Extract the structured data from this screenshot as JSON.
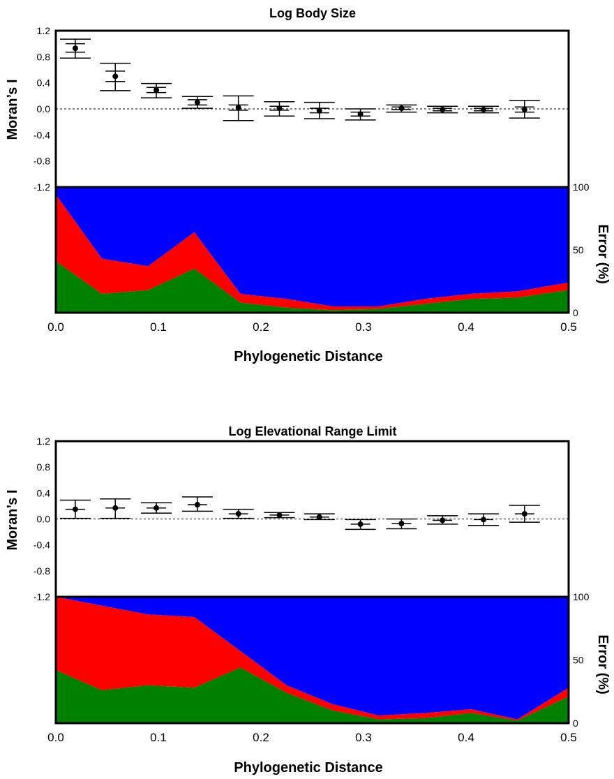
{
  "chart_data": [
    {
      "type": "scatter",
      "title": "Log Body Size",
      "xlabel": "Phylogenetic Distance",
      "ylabel": "Moran’s I",
      "y2label": "Error (%)",
      "xlim": [
        0,
        0.5
      ],
      "ylim": [
        -1.2,
        1.2
      ],
      "y2lim": [
        0,
        100
      ],
      "xticks": [
        "0.0",
        "0.1",
        "0.2",
        "0.3",
        "0.4",
        "0.5"
      ],
      "yticks": [
        "1.2",
        "0.8",
        "0.4",
        "0.0",
        "-0.4",
        "-0.8",
        "-1.2"
      ],
      "y2ticks": [
        "100",
        "50",
        "0"
      ],
      "moran": {
        "x": [
          0.019,
          0.058,
          0.098,
          0.138,
          0.178,
          0.218,
          0.257,
          0.297,
          0.337,
          0.377,
          0.417,
          0.457
        ],
        "mean": [
          0.93,
          0.5,
          0.29,
          0.1,
          0.02,
          0.01,
          -0.03,
          -0.08,
          0.01,
          -0.01,
          -0.01,
          -0.01
        ],
        "upper": [
          1.07,
          0.7,
          0.39,
          0.19,
          0.2,
          0.11,
          0.1,
          0.0,
          0.06,
          0.04,
          0.04,
          0.13
        ],
        "lower": [
          0.78,
          0.28,
          0.17,
          0.01,
          -0.18,
          -0.11,
          -0.15,
          -0.17,
          -0.05,
          -0.06,
          -0.06,
          -0.14
        ],
        "inner_upper": [
          1.0,
          0.58,
          0.33,
          0.14,
          0.06,
          0.04,
          0.01,
          -0.05,
          0.03,
          0.01,
          0.01,
          0.03
        ],
        "inner_lower": [
          0.87,
          0.42,
          0.25,
          0.06,
          -0.02,
          -0.02,
          -0.06,
          -0.11,
          -0.01,
          -0.03,
          -0.03,
          -0.05
        ]
      },
      "error_area": {
        "x": [
          0.0,
          0.045,
          0.09,
          0.135,
          0.18,
          0.225,
          0.27,
          0.315,
          0.36,
          0.405,
          0.45,
          0.5
        ],
        "green": [
          41,
          15,
          18,
          35,
          8,
          4,
          2,
          3,
          7,
          11,
          12,
          18
        ],
        "red_top": [
          94,
          43,
          37,
          64,
          15,
          11,
          5,
          5,
          11,
          15,
          17,
          24
        ],
        "blue_top": [
          100,
          100,
          100,
          100,
          100,
          100,
          100,
          100,
          100,
          100,
          100,
          100
        ]
      },
      "colors": {
        "green": "#008000",
        "red": "#ff0000",
        "blue": "#0000ff"
      }
    },
    {
      "type": "scatter",
      "title": "Log Elevational Range Limit",
      "xlabel": "Phylogenetic Distance",
      "ylabel": "Moran’s I",
      "y2label": "Error (%)",
      "xlim": [
        0,
        0.5
      ],
      "ylim": [
        -1.2,
        1.2
      ],
      "y2lim": [
        0,
        100
      ],
      "xticks": [
        "0.0",
        "0.1",
        "0.2",
        "0.3",
        "0.4",
        "0.5"
      ],
      "yticks": [
        "1.2",
        "0.8",
        "0.4",
        "0.0",
        "-0.4",
        "-0.8",
        "-1.2"
      ],
      "y2ticks": [
        "100",
        "50",
        "0"
      ],
      "moran": {
        "x": [
          0.019,
          0.058,
          0.098,
          0.138,
          0.178,
          0.218,
          0.257,
          0.297,
          0.337,
          0.377,
          0.417,
          0.457
        ],
        "mean": [
          0.15,
          0.17,
          0.17,
          0.22,
          0.08,
          0.06,
          0.03,
          -0.08,
          -0.07,
          -0.02,
          -0.01,
          0.08
        ],
        "upper": [
          0.29,
          0.31,
          0.25,
          0.34,
          0.15,
          0.1,
          0.08,
          -0.01,
          0.0,
          0.05,
          0.08,
          0.21
        ],
        "lower": [
          0.01,
          0.01,
          0.09,
          0.12,
          0.01,
          0.02,
          -0.01,
          -0.16,
          -0.15,
          -0.08,
          -0.1,
          -0.05
        ]
      },
      "error_area": {
        "x": [
          0.0,
          0.045,
          0.09,
          0.135,
          0.18,
          0.225,
          0.27,
          0.315,
          0.36,
          0.405,
          0.45,
          0.5
        ],
        "green": [
          42,
          26,
          30,
          28,
          44,
          24,
          10,
          3,
          4,
          8,
          2,
          21
        ],
        "red_top": [
          100,
          93,
          86,
          84,
          57,
          30,
          15,
          6,
          8,
          11,
          3,
          28
        ],
        "blue_top": [
          100,
          100,
          100,
          100,
          100,
          100,
          100,
          100,
          100,
          100,
          100,
          100
        ]
      },
      "colors": {
        "green": "#008000",
        "red": "#ff0000",
        "blue": "#0000ff"
      }
    }
  ]
}
